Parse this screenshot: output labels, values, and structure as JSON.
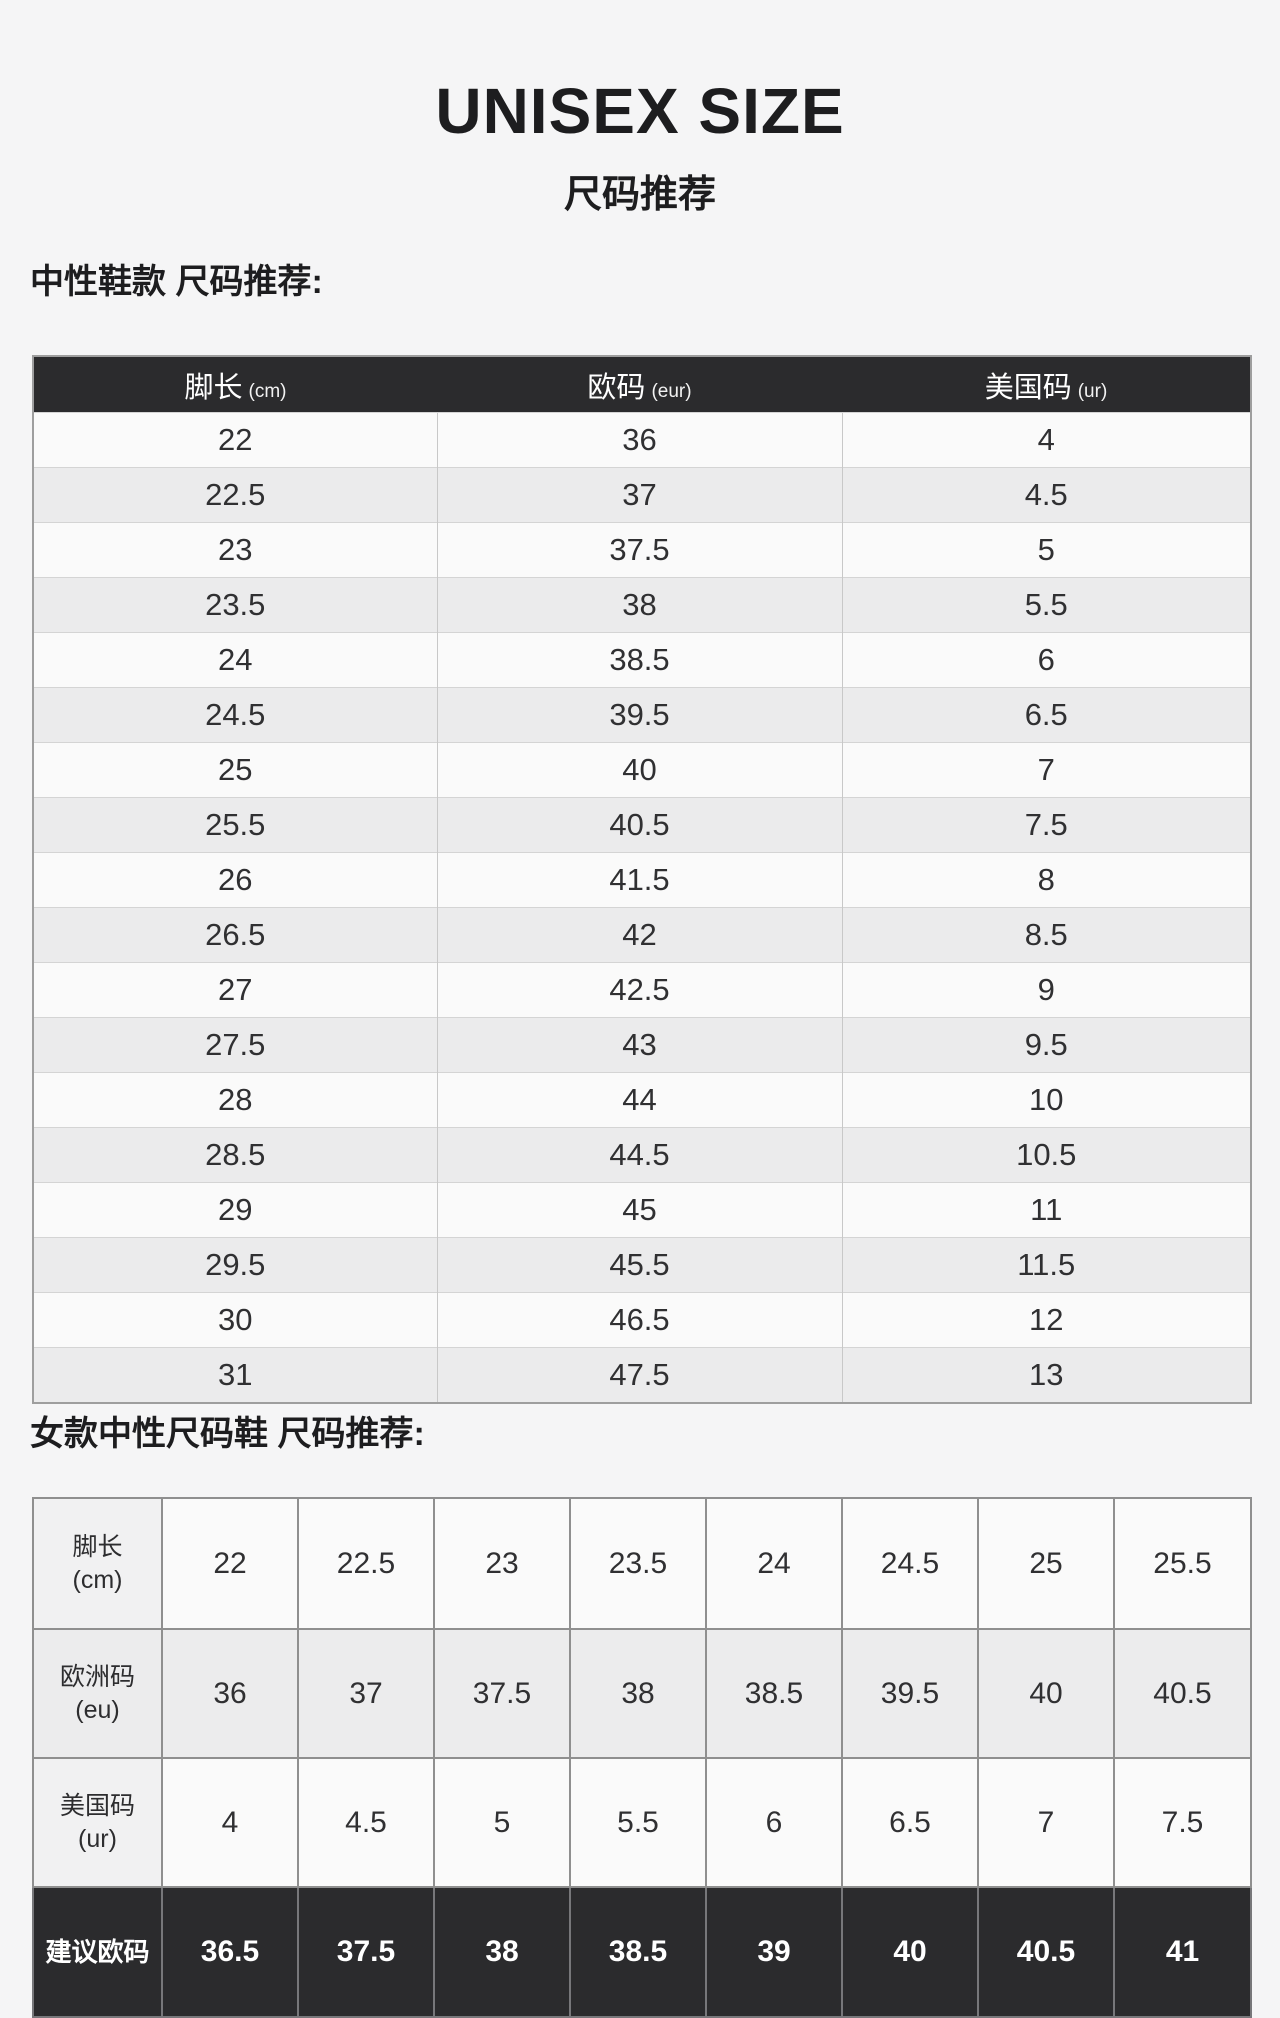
{
  "page": {
    "title": "UNISEX SIZE",
    "subtitle": "尺码推荐"
  },
  "colors": {
    "page_background": "#f5f5f6",
    "header_row_background": "#2b2b2d",
    "row_light": "#fafafa",
    "row_shade": "#ebebec",
    "text": "#303032"
  },
  "unisex_table": {
    "heading": "中性鞋款 尺码推荐:",
    "columns": [
      {
        "label": "脚长",
        "unit": "(cm)"
      },
      {
        "label": "欧码",
        "unit": "(eur)"
      },
      {
        "label": "美国码",
        "unit": "(ur)"
      }
    ],
    "rows": [
      [
        "22",
        "36",
        "4"
      ],
      [
        "22.5",
        "37",
        "4.5"
      ],
      [
        "23",
        "37.5",
        "5"
      ],
      [
        "23.5",
        "38",
        "5.5"
      ],
      [
        "24",
        "38.5",
        "6"
      ],
      [
        "24.5",
        "39.5",
        "6.5"
      ],
      [
        "25",
        "40",
        "7"
      ],
      [
        "25.5",
        "40.5",
        "7.5"
      ],
      [
        "26",
        "41.5",
        "8"
      ],
      [
        "26.5",
        "42",
        "8.5"
      ],
      [
        "27",
        "42.5",
        "9"
      ],
      [
        "27.5",
        "43",
        "9.5"
      ],
      [
        "28",
        "44",
        "10"
      ],
      [
        "28.5",
        "44.5",
        "10.5"
      ],
      [
        "29",
        "45",
        "11"
      ],
      [
        "29.5",
        "45.5",
        "11.5"
      ],
      [
        "30",
        "46.5",
        "12"
      ],
      [
        "31",
        "47.5",
        "13"
      ]
    ]
  },
  "women_table": {
    "heading": "女款中性尺码鞋 尺码推荐:",
    "rows": [
      {
        "label": "脚长",
        "unit": "(cm)",
        "style": "light r1",
        "values": [
          "22",
          "22.5",
          "23",
          "23.5",
          "24",
          "24.5",
          "25",
          "25.5"
        ]
      },
      {
        "label": "欧洲码",
        "unit": "(eu)",
        "style": "shade r2",
        "values": [
          "36",
          "37",
          "37.5",
          "38",
          "38.5",
          "39.5",
          "40",
          "40.5"
        ]
      },
      {
        "label": "美国码",
        "unit": "(ur)",
        "style": "light r3",
        "values": [
          "4",
          "4.5",
          "5",
          "5.5",
          "6",
          "6.5",
          "7",
          "7.5"
        ]
      },
      {
        "label": "建议欧码",
        "unit": "",
        "style": "dark",
        "values": [
          "36.5",
          "37.5",
          "38",
          "38.5",
          "39",
          "40",
          "40.5",
          "41"
        ]
      }
    ]
  }
}
